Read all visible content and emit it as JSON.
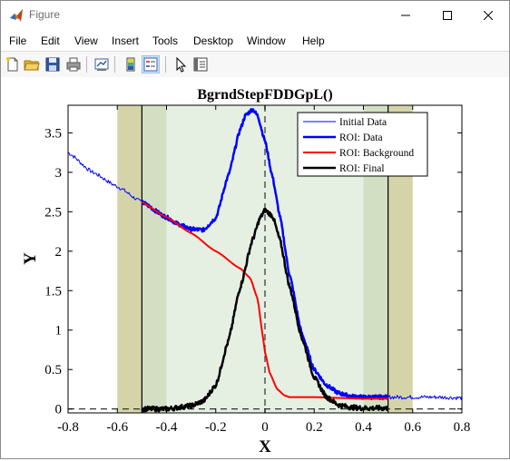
{
  "window": {
    "title": "Figure",
    "controls": [
      "minimize",
      "maximize",
      "close"
    ]
  },
  "menu": {
    "items": [
      "File",
      "Edit",
      "View",
      "Insert",
      "Tools",
      "Desktop",
      "Window",
      "Help"
    ]
  },
  "toolbar": {
    "buttons": [
      {
        "name": "new-figure-icon"
      },
      {
        "name": "open-file-icon"
      },
      {
        "name": "save-icon"
      },
      {
        "name": "print-icon"
      },
      {
        "name": "link-plot-icon"
      },
      {
        "name": "colorbar-icon"
      },
      {
        "name": "legend-icon",
        "active": true
      },
      {
        "name": "pointer-icon"
      },
      {
        "name": "property-inspector-icon"
      }
    ]
  },
  "chart_data": {
    "type": "line",
    "title": "BgrndStepFDDGpL()",
    "xlabel": "X",
    "ylabel": "Y",
    "xlim": [
      -0.8,
      0.8
    ],
    "ylim": [
      -0.05,
      3.85
    ],
    "xticks": [
      "-0.8",
      "-0.6",
      "-0.4",
      "-0.2",
      "0",
      "0.2",
      "0.4",
      "0.6",
      "0.8"
    ],
    "yticks": [
      "0",
      "0.5",
      "1",
      "1.5",
      "2",
      "2.5",
      "3",
      "3.5"
    ],
    "legend_position": "top-right",
    "regions": [
      {
        "x": [
          -0.6,
          -0.5
        ],
        "color": "#d4d4a8"
      },
      {
        "x": [
          -0.5,
          -0.4
        ],
        "color": "#d3dfc2"
      },
      {
        "x": [
          -0.4,
          0.4
        ],
        "color": "#e5f0e3"
      },
      {
        "x": [
          0.4,
          0.5
        ],
        "color": "#d3dfc2"
      },
      {
        "x": [
          0.5,
          0.6
        ],
        "color": "#d4d4a8"
      }
    ],
    "vlines_solid": [
      -0.5,
      0.5
    ],
    "vlines_dashed": [
      0
    ],
    "hline_dashed": 0,
    "series": [
      {
        "name": "Initial Data",
        "color": "#0000ff",
        "width": 1,
        "noise": 0.025,
        "x": [
          -0.8,
          -0.7,
          -0.6,
          -0.5,
          -0.4,
          -0.35,
          -0.3,
          -0.25,
          -0.2,
          -0.15,
          -0.1,
          -0.08,
          -0.05,
          -0.03,
          0,
          0.03,
          0.06,
          0.1,
          0.15,
          0.2,
          0.25,
          0.3,
          0.35,
          0.4,
          0.45,
          0.5,
          0.6,
          0.7,
          0.8
        ],
        "y": [
          3.25,
          3.0,
          2.82,
          2.62,
          2.43,
          2.34,
          2.28,
          2.27,
          2.42,
          2.95,
          3.55,
          3.72,
          3.8,
          3.72,
          3.4,
          2.95,
          2.45,
          1.7,
          0.95,
          0.5,
          0.3,
          0.2,
          0.16,
          0.15,
          0.15,
          0.15,
          0.15,
          0.15,
          0.14
        ]
      },
      {
        "name": "ROI: Data",
        "color": "#0000ff",
        "width": 2.5,
        "noise": 0.025,
        "x": [
          -0.5,
          -0.4,
          -0.35,
          -0.3,
          -0.25,
          -0.2,
          -0.15,
          -0.1,
          -0.08,
          -0.05,
          -0.03,
          0,
          0.03,
          0.06,
          0.1,
          0.15,
          0.2,
          0.25,
          0.3,
          0.35,
          0.4,
          0.45,
          0.5
        ],
        "y": [
          2.62,
          2.43,
          2.34,
          2.28,
          2.27,
          2.42,
          2.95,
          3.55,
          3.72,
          3.8,
          3.72,
          3.4,
          2.95,
          2.45,
          1.7,
          0.95,
          0.5,
          0.3,
          0.2,
          0.16,
          0.15,
          0.15,
          0.15
        ]
      },
      {
        "name": "ROI: Background",
        "color": "#ff0000",
        "width": 2,
        "noise": 0,
        "x": [
          -0.5,
          -0.4,
          -0.3,
          -0.2,
          -0.1,
          -0.06,
          -0.03,
          -0.01,
          0,
          0.02,
          0.05,
          0.08,
          0.1,
          0.15,
          0.2,
          0.3,
          0.4,
          0.5
        ],
        "y": [
          2.62,
          2.43,
          2.23,
          2.0,
          1.78,
          1.66,
          1.4,
          0.95,
          0.72,
          0.45,
          0.25,
          0.17,
          0.15,
          0.15,
          0.15,
          0.14,
          0.13,
          0.13
        ]
      },
      {
        "name": "ROI: Final",
        "color": "#000000",
        "width": 2.5,
        "noise": 0.03,
        "x": [
          -0.5,
          -0.4,
          -0.3,
          -0.25,
          -0.2,
          -0.15,
          -0.1,
          -0.05,
          -0.02,
          0,
          0.03,
          0.06,
          0.1,
          0.15,
          0.2,
          0.25,
          0.3,
          0.35,
          0.4,
          0.45,
          0.5
        ],
        "y": [
          0.0,
          0.0,
          0.04,
          0.1,
          0.3,
          0.85,
          1.55,
          2.15,
          2.42,
          2.52,
          2.45,
          2.15,
          1.55,
          0.9,
          0.4,
          0.15,
          0.05,
          0.02,
          0.01,
          0.01,
          0.01
        ]
      }
    ]
  }
}
